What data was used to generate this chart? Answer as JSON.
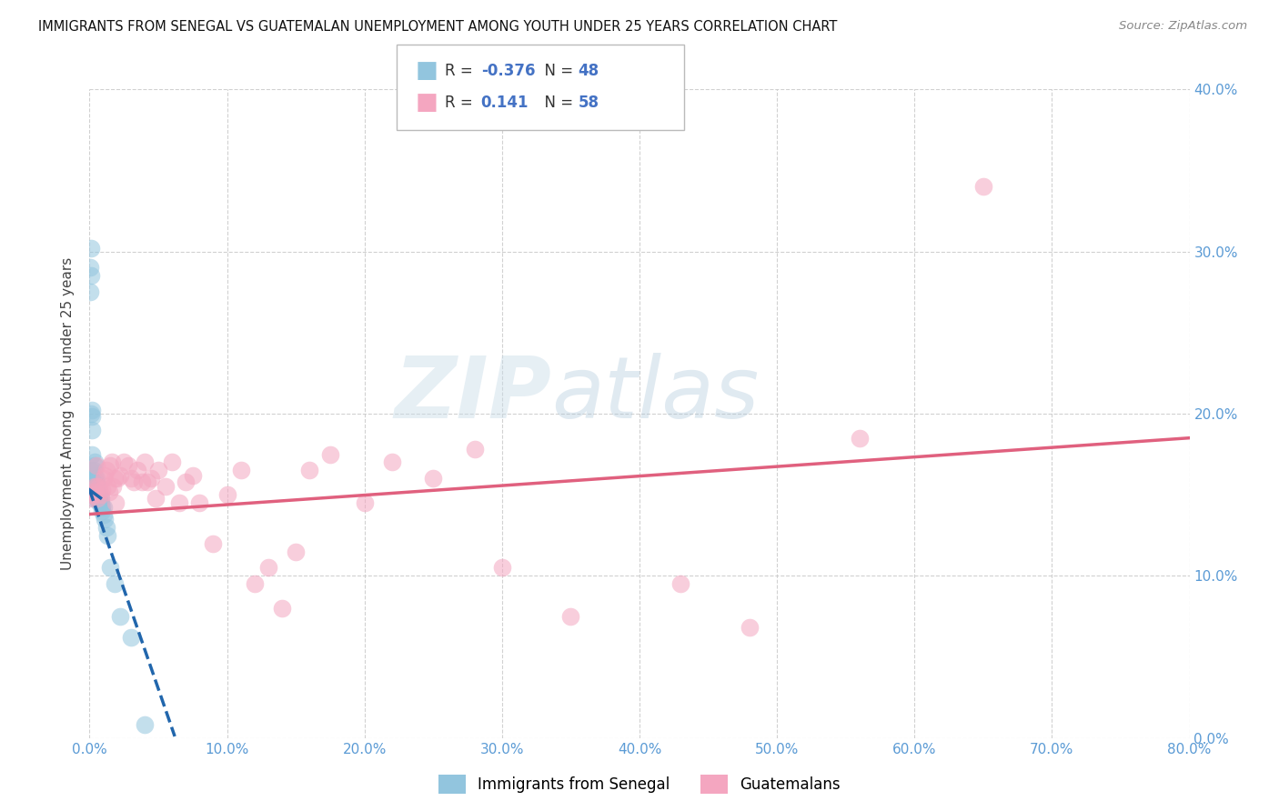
{
  "title": "IMMIGRANTS FROM SENEGAL VS GUATEMALAN UNEMPLOYMENT AMONG YOUTH UNDER 25 YEARS CORRELATION CHART",
  "source": "Source: ZipAtlas.com",
  "ylabel": "Unemployment Among Youth under 25 years",
  "legend_label_1": "Immigrants from Senegal",
  "legend_label_2": "Guatemalans",
  "R1": -0.376,
  "N1": 48,
  "R2": 0.141,
  "N2": 58,
  "color1": "#92c5de",
  "color2": "#f4a6c0",
  "line_color1": "#2166ac",
  "line_color2": "#e0607e",
  "xlim": [
    0,
    0.8
  ],
  "ylim": [
    0,
    0.4
  ],
  "xticks": [
    0,
    0.1,
    0.2,
    0.3,
    0.4,
    0.5,
    0.6,
    0.7,
    0.8
  ],
  "yticks": [
    0,
    0.1,
    0.2,
    0.3,
    0.4
  ],
  "background_color": "#ffffff",
  "tick_color": "#5b9bd5",
  "senegal_x": [
    0.0005,
    0.0005,
    0.001,
    0.001,
    0.001,
    0.001,
    0.0015,
    0.002,
    0.002,
    0.002,
    0.002,
    0.002,
    0.003,
    0.003,
    0.003,
    0.003,
    0.003,
    0.003,
    0.004,
    0.004,
    0.004,
    0.004,
    0.004,
    0.004,
    0.005,
    0.005,
    0.005,
    0.005,
    0.005,
    0.006,
    0.006,
    0.006,
    0.007,
    0.007,
    0.008,
    0.008,
    0.009,
    0.009,
    0.01,
    0.01,
    0.011,
    0.012,
    0.013,
    0.015,
    0.018,
    0.022,
    0.03,
    0.04
  ],
  "senegal_y": [
    0.29,
    0.275,
    0.302,
    0.285,
    0.2,
    0.165,
    0.198,
    0.202,
    0.19,
    0.175,
    0.155,
    0.15,
    0.165,
    0.16,
    0.158,
    0.155,
    0.152,
    0.148,
    0.17,
    0.168,
    0.162,
    0.158,
    0.155,
    0.15,
    0.16,
    0.158,
    0.155,
    0.15,
    0.148,
    0.155,
    0.152,
    0.148,
    0.15,
    0.145,
    0.148,
    0.145,
    0.143,
    0.14,
    0.142,
    0.138,
    0.135,
    0.13,
    0.125,
    0.105,
    0.095,
    0.075,
    0.062,
    0.008
  ],
  "guatemalan_x": [
    0.001,
    0.002,
    0.003,
    0.004,
    0.005,
    0.005,
    0.006,
    0.007,
    0.008,
    0.009,
    0.01,
    0.011,
    0.012,
    0.013,
    0.014,
    0.015,
    0.016,
    0.017,
    0.018,
    0.019,
    0.02,
    0.022,
    0.025,
    0.028,
    0.03,
    0.032,
    0.035,
    0.038,
    0.04,
    0.042,
    0.045,
    0.048,
    0.05,
    0.055,
    0.06,
    0.065,
    0.07,
    0.075,
    0.08,
    0.09,
    0.1,
    0.11,
    0.12,
    0.13,
    0.14,
    0.15,
    0.16,
    0.175,
    0.2,
    0.22,
    0.25,
    0.28,
    0.3,
    0.35,
    0.43,
    0.48,
    0.56,
    0.65
  ],
  "guatemalan_y": [
    0.148,
    0.15,
    0.152,
    0.155,
    0.155,
    0.168,
    0.148,
    0.155,
    0.15,
    0.153,
    0.16,
    0.162,
    0.165,
    0.155,
    0.152,
    0.168,
    0.17,
    0.155,
    0.16,
    0.145,
    0.16,
    0.162,
    0.17,
    0.168,
    0.16,
    0.158,
    0.165,
    0.158,
    0.17,
    0.158,
    0.16,
    0.148,
    0.165,
    0.155,
    0.17,
    0.145,
    0.158,
    0.162,
    0.145,
    0.12,
    0.15,
    0.165,
    0.095,
    0.105,
    0.08,
    0.115,
    0.165,
    0.175,
    0.145,
    0.17,
    0.16,
    0.178,
    0.105,
    0.075,
    0.095,
    0.068,
    0.185,
    0.34
  ],
  "senegal_line_x": [
    0.0,
    0.062
  ],
  "senegal_line_y": [
    0.153,
    0.001
  ],
  "guatemalan_line_x": [
    0.0,
    0.8
  ],
  "guatemalan_line_y": [
    0.138,
    0.185
  ]
}
